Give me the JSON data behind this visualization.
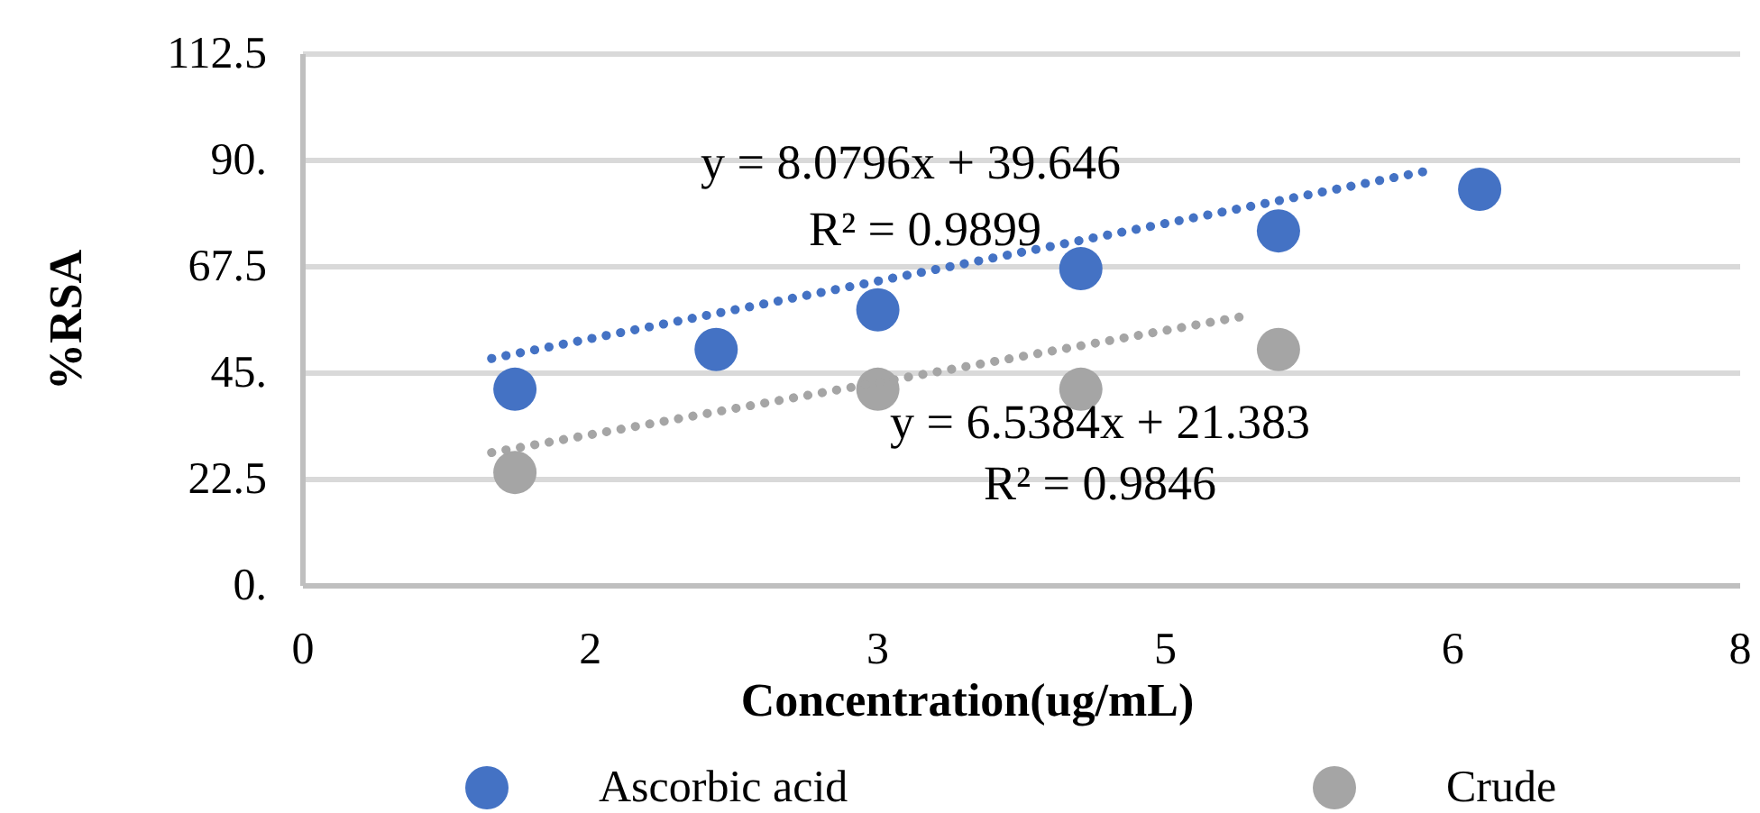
{
  "chart_data": {
    "type": "scatter",
    "xlabel": "Concentration(ug/mL)",
    "ylabel": "%RSA",
    "xlim": [
      0,
      8
    ],
    "xticks": [
      0,
      {
        "value": 1.6,
        "label": "2"
      },
      {
        "value": 3.2,
        "label": "3"
      },
      {
        "value": 4.8,
        "label": "5"
      },
      {
        "value": 6.4,
        "label": "6"
      },
      8
    ],
    "ylim": [
      0,
      112.5
    ],
    "yticks": [
      {
        "value": 0,
        "label": "0."
      },
      22.5,
      {
        "value": 45,
        "label": "45."
      },
      67.5,
      {
        "value": 90,
        "label": "90."
      },
      112.5
    ],
    "grid": "y",
    "legend": "bottom",
    "series": [
      {
        "name": "Ascorbic acid",
        "color": "#4472c4",
        "marker": "circle",
        "x": [
          1.18,
          2.3,
          3.2,
          4.33,
          5.43,
          6.55
        ],
        "values": [
          41.6,
          50,
          58.4,
          67.1,
          75.1,
          83.9
        ]
      },
      {
        "name": "Crude",
        "color": "#a5a5a5",
        "marker": "circle",
        "x": [
          1.18,
          3.2,
          4.33,
          5.43
        ],
        "values": [
          24,
          41.6,
          41.6,
          50
        ]
      },
      {
        "type": "line",
        "color": "#4472c4",
        "marker": "none",
        "line_style": "dotted",
        "x": [
          1.05,
          6.3
        ],
        "values": [
          48.1,
          88.1
        ]
      },
      {
        "type": "line",
        "color": "#a5a5a5",
        "marker": "none",
        "line_style": "dotted",
        "x": [
          1.05,
          5.26
        ],
        "values": [
          28.2,
          57.2
        ]
      }
    ],
    "annotations": [
      "y = 8.0796x + 39.646",
      "R² = 0.9899",
      "y = 6.5384x + 21.383",
      "R² = 0.9846"
    ]
  }
}
